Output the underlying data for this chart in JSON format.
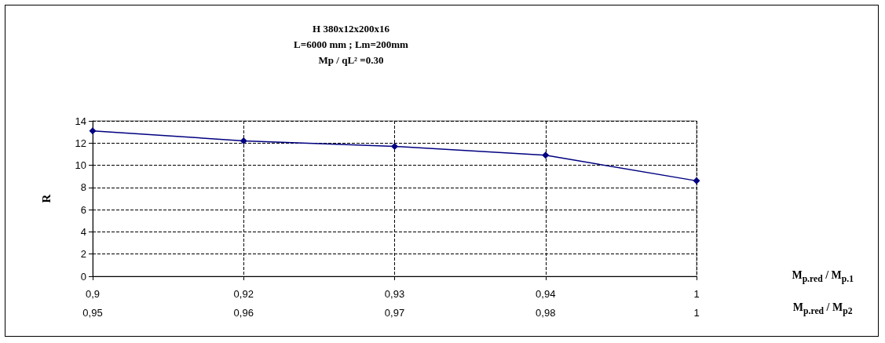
{
  "chart_data": {
    "type": "line",
    "title": "H 380x12x200x16",
    "subtitle": "L=6000 mm ; Lm=200mm\nMp / qL² =0.30",
    "xlabel": "M$_{p.red}$ / M$_{p.1}$\nM$_{p.red}$ / M$_{p2}$",
    "ylabel": "R",
    "categories": [
      "0,9\n0,95",
      "0,92\n0,96",
      "0,93\n0,97",
      "0,94\n0,98",
      "1\n1"
    ],
    "series": [
      {
        "color": "#000080",
        "values": [
          13.1,
          12.2,
          11.7,
          10.9,
          8.6
        ]
      }
    ],
    "ylim": [
      0,
      14
    ],
    "yticks": [
      0,
      2,
      4,
      6,
      8,
      10,
      12,
      14
    ],
    "grid": true,
    "marker": "diamond",
    "line_style": "solid"
  }
}
